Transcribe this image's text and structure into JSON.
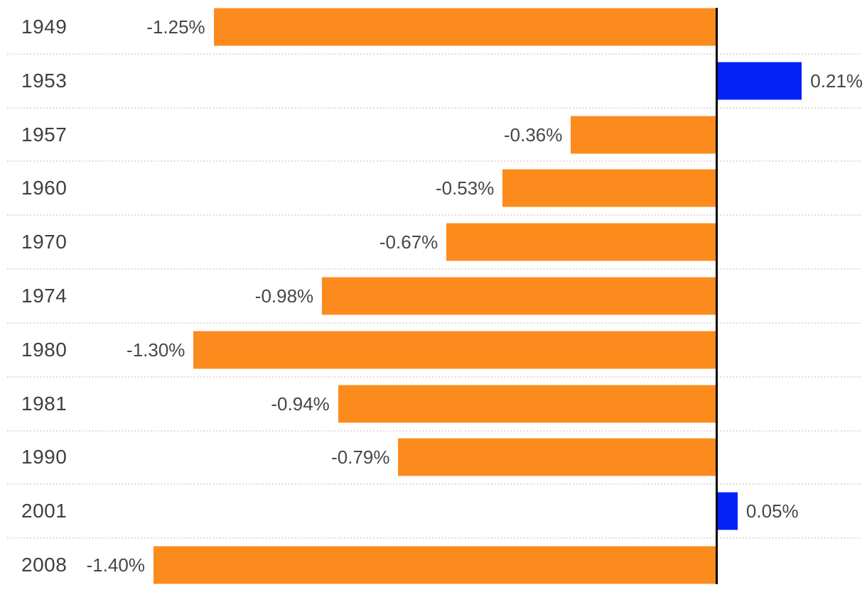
{
  "chart_data": {
    "type": "bar",
    "orientation": "horizontal",
    "title": "",
    "xlabel": "",
    "ylabel": "",
    "categories": [
      "1949",
      "1953",
      "1957",
      "1960",
      "1970",
      "1974",
      "1980",
      "1981",
      "1990",
      "2001",
      "2008"
    ],
    "values": [
      -1.25,
      0.21,
      -0.36,
      -0.53,
      -0.67,
      -0.98,
      -1.3,
      -0.94,
      -0.79,
      0.05,
      -1.4
    ],
    "value_labels": [
      "-1.25%",
      "0.21%",
      "-0.36%",
      "-0.53%",
      "-0.67%",
      "-0.98%",
      "-1.30%",
      "-0.94%",
      "-0.79%",
      "0.05%",
      "-1.40%"
    ],
    "baseline": 0,
    "xlim": [
      -1.785,
      0.375
    ],
    "grid": "dotted horizontal separators between rows",
    "legend": "none",
    "colors": {
      "negative_bar": "#FC8B1E",
      "positive_bar": "#0522F5",
      "axis_line": "#000000",
      "row_separator": "#DCDCDC",
      "category_text": "#3F3F3F",
      "value_text": "#474747"
    }
  }
}
